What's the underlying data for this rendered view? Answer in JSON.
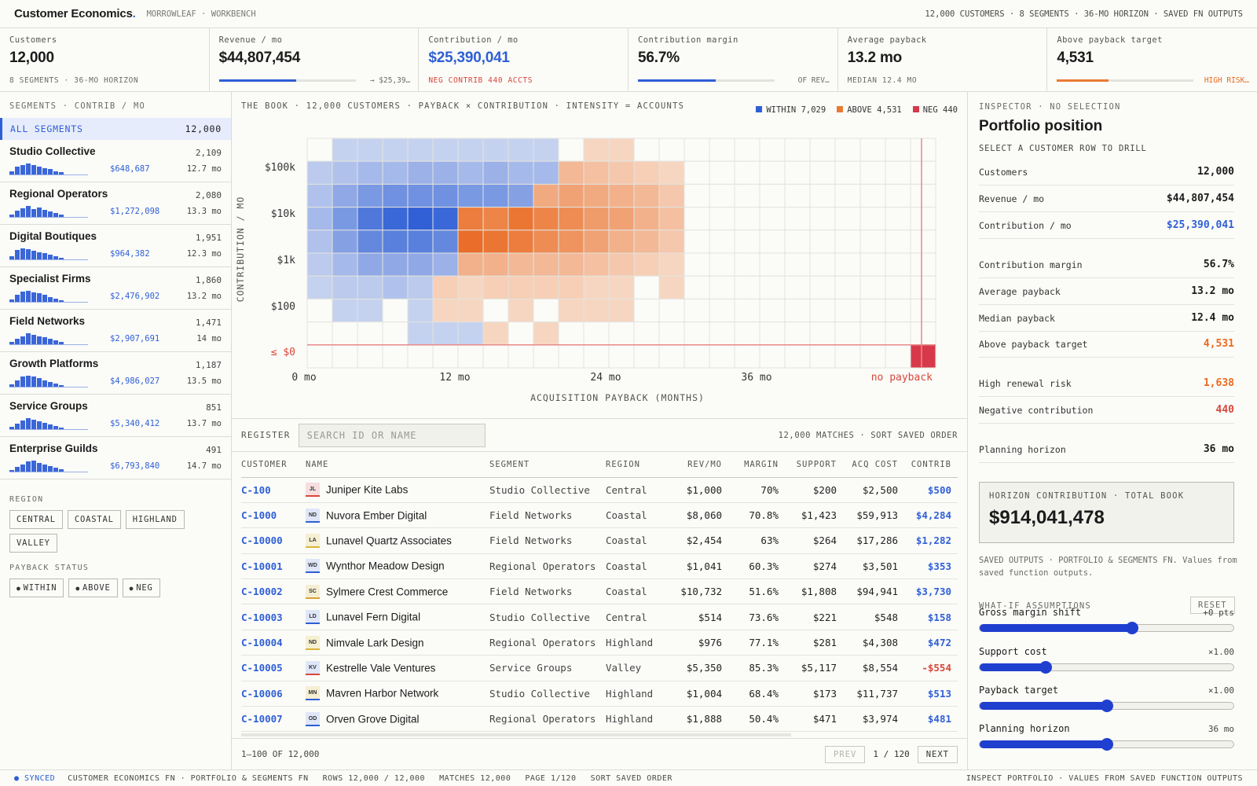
{
  "app": {
    "brand": "Customer Economics",
    "brand_dot": ".",
    "workspace": "MORROWLEAF · WORKBENCH",
    "meta": "12,000 CUSTOMERS · 8 SEGMENTS · 36-MO HORIZON · SAVED FN OUTPUTS"
  },
  "kpis": [
    {
      "label": "Customers",
      "value": "12,000",
      "sub": "8 SEGMENTS · 36-MO HORIZON"
    },
    {
      "label": "Revenue / mo",
      "value": "$44,807,454",
      "bar_fraction": 0.567,
      "note": "→ $25,39…"
    },
    {
      "label": "Contribution / mo",
      "value": "$25,390,041",
      "sub": "NEG CONTRIB 440 ACCTS"
    },
    {
      "label": "Contribution margin",
      "value": "56.7%",
      "bar_fraction": 0.567,
      "note": "OF REV…"
    },
    {
      "label": "Average payback",
      "value": "13.2 mo",
      "sub": "MEDIAN 12.4 MO"
    },
    {
      "label": "Above payback target",
      "value": "4,531",
      "bar_fraction": 0.38,
      "note": "HIGH RISK…"
    }
  ],
  "segments": {
    "header": "SEGMENTS · CONTRIB / MO",
    "all": {
      "label": "ALL SEGMENTS",
      "count": "12,000"
    },
    "items": [
      {
        "name": "Studio Collective",
        "count": "2,109",
        "contrib": "$648,687",
        "payback": "12.7 mo",
        "spark": [
          4,
          10,
          12,
          14,
          12,
          10,
          8,
          7,
          4,
          3
        ]
      },
      {
        "name": "Regional Operators",
        "count": "2,080",
        "contrib": "$1,272,098",
        "payback": "13.3 mo",
        "spark": [
          3,
          8,
          11,
          14,
          10,
          12,
          9,
          7,
          5,
          3
        ]
      },
      {
        "name": "Digital Boutiques",
        "count": "1,951",
        "contrib": "$964,382",
        "payback": "12.3 mo",
        "spark": [
          4,
          12,
          14,
          13,
          11,
          9,
          8,
          6,
          4,
          2
        ]
      },
      {
        "name": "Specialist Firms",
        "count": "1,860",
        "contrib": "$2,476,902",
        "payback": "13.2 mo",
        "spark": [
          3,
          9,
          13,
          14,
          12,
          11,
          9,
          6,
          4,
          2
        ]
      },
      {
        "name": "Field Networks",
        "count": "1,471",
        "contrib": "$2,907,691",
        "payback": "14 mo",
        "spark": [
          3,
          7,
          10,
          14,
          12,
          10,
          9,
          7,
          5,
          3
        ]
      },
      {
        "name": "Growth Platforms",
        "count": "1,187",
        "contrib": "$4,986,027",
        "payback": "13.5 mo",
        "spark": [
          3,
          8,
          13,
          14,
          13,
          11,
          8,
          6,
          4,
          2
        ]
      },
      {
        "name": "Service Groups",
        "count": "851",
        "contrib": "$5,340,412",
        "payback": "13.7 mo",
        "spark": [
          3,
          7,
          11,
          14,
          12,
          10,
          8,
          6,
          4,
          2
        ]
      },
      {
        "name": "Enterprise Guilds",
        "count": "491",
        "contrib": "$6,793,840",
        "payback": "14.7 mo",
        "spark": [
          2,
          6,
          9,
          13,
          14,
          11,
          9,
          7,
          5,
          3
        ]
      }
    ]
  },
  "filters": {
    "region_label": "REGION",
    "regions": [
      "CENTRAL",
      "COASTAL",
      "HIGHLAND",
      "VALLEY"
    ],
    "payback_label": "PAYBACK STATUS",
    "payback": [
      "WITHIN",
      "ABOVE",
      "NEG"
    ],
    "bullet": "●"
  },
  "chart_data": {
    "type": "heatmap",
    "title": "THE BOOK · 12,000 CUSTOMERS · PAYBACK × CONTRIBUTION · INTENSITY = ACCOUNTS",
    "xlabel": "ACQUISITION PAYBACK (MONTHS)",
    "ylabel": "CONTRIBUTION / MO",
    "x_ticks": [
      "0 mo",
      "12 mo",
      "24 mo",
      "36 mo",
      "no payback"
    ],
    "y_ticks": [
      "$100k",
      "$10k",
      "$1k",
      "$100",
      "≤ $0"
    ],
    "legend": [
      {
        "name": "WITHIN",
        "count": "7,029",
        "color": "#2f5fd6"
      },
      {
        "name": "ABOVE",
        "count": "4,531",
        "color": "#ea7a32"
      },
      {
        "name": "NEG",
        "count": "440",
        "color": "#d8394a"
      }
    ],
    "payback_target_col": 10,
    "note": "cells: intensity 0-1 per row (rows top = highest contribution); cols 0..24 = payback buckets of 1.5 mo; col 24 = no payback",
    "rows": [
      [
        0,
        0.25,
        0.25,
        0.25,
        0.25,
        0.25,
        0.25,
        0.25,
        0.25,
        0.25,
        0,
        0.25,
        0.25,
        0,
        0,
        0,
        0,
        0,
        0,
        0,
        0,
        0,
        0,
        0,
        0
      ],
      [
        0.3,
        0.35,
        0.4,
        0.4,
        0.45,
        0.45,
        0.4,
        0.45,
        0.4,
        0.4,
        0.45,
        0.4,
        0.35,
        0.3,
        0.25,
        0,
        0,
        0,
        0,
        0,
        0,
        0,
        0,
        0,
        0
      ],
      [
        0.35,
        0.5,
        0.6,
        0.65,
        0.65,
        0.65,
        0.6,
        0.6,
        0.55,
        0.55,
        0.6,
        0.55,
        0.5,
        0.45,
        0.35,
        0,
        0,
        0,
        0,
        0,
        0,
        0,
        0,
        0,
        0
      ],
      [
        0.4,
        0.6,
        0.8,
        0.9,
        0.95,
        0.9,
        0.85,
        0.8,
        0.9,
        0.8,
        0.75,
        0.65,
        0.6,
        0.5,
        0.4,
        0,
        0,
        0,
        0,
        0,
        0,
        0,
        0,
        0,
        0
      ],
      [
        0.35,
        0.55,
        0.7,
        0.75,
        0.75,
        0.7,
        0.95,
        0.9,
        0.85,
        0.75,
        0.7,
        0.6,
        0.5,
        0.45,
        0.35,
        0,
        0,
        0,
        0,
        0,
        0,
        0,
        0,
        0,
        0
      ],
      [
        0.3,
        0.4,
        0.5,
        0.5,
        0.5,
        0.45,
        0.5,
        0.5,
        0.45,
        0.45,
        0.45,
        0.4,
        0.35,
        0.3,
        0.25,
        0,
        0,
        0,
        0,
        0,
        0,
        0,
        0,
        0,
        0
      ],
      [
        0.25,
        0.3,
        0.3,
        0.35,
        0.3,
        0.3,
        0.25,
        0.3,
        0.3,
        0.3,
        0.3,
        0.25,
        0.25,
        0,
        0.25,
        0,
        0,
        0,
        0,
        0,
        0,
        0,
        0,
        0,
        0
      ],
      [
        0,
        0.25,
        0.25,
        0,
        0.25,
        0.25,
        0.25,
        0,
        0.25,
        0,
        0.25,
        0.25,
        0.25,
        0,
        0,
        0,
        0,
        0,
        0,
        0,
        0,
        0,
        0,
        0,
        0
      ],
      [
        0,
        0,
        0,
        0,
        0.25,
        0.25,
        0.25,
        0.25,
        0,
        0.25,
        0,
        0,
        0,
        0,
        0,
        0,
        0,
        0,
        0,
        0,
        0,
        0,
        0,
        0,
        0
      ],
      [
        0,
        0,
        0,
        0,
        0,
        0,
        0,
        0,
        0,
        0,
        0,
        0,
        0,
        0,
        0,
        0,
        0,
        0,
        0,
        0,
        0,
        0,
        0,
        0,
        1
      ]
    ],
    "split_col": 6,
    "split_rows_orange_from_col": [
      10,
      10,
      9,
      6,
      6,
      6,
      5,
      5,
      7,
      99
    ]
  },
  "register": {
    "label": "REGISTER",
    "search_placeholder": "SEARCH ID OR NAME",
    "meta": "12,000 MATCHES · SORT SAVED ORDER",
    "columns": [
      "CUSTOMER",
      "NAME",
      "SEGMENT",
      "REGION",
      "REV/MO",
      "MARGIN",
      "SUPPORT",
      "ACQ COST",
      "CONTRIB"
    ],
    "rows": [
      {
        "id": "C-100",
        "initials": "JL",
        "avatar_bg": "#f6dede",
        "avatar_line": "#d8473a",
        "name": "Juniper Kite Labs",
        "segment": "Studio Collective",
        "region": "Central",
        "rev": "$1,000",
        "margin": "70%",
        "support": "$200",
        "acq": "$2,500",
        "contrib": "$500",
        "neg": false
      },
      {
        "id": "C-1000",
        "initials": "ND",
        "avatar_bg": "#dfe6f7",
        "avatar_line": "#2f5fd6",
        "name": "Nuvora Ember Digital",
        "segment": "Field Networks",
        "region": "Coastal",
        "rev": "$8,060",
        "margin": "70.8%",
        "support": "$1,423",
        "acq": "$59,913",
        "contrib": "$4,284",
        "neg": false
      },
      {
        "id": "C-10000",
        "initials": "LA",
        "avatar_bg": "#f6f0d2",
        "avatar_line": "#d9b53a",
        "name": "Lunavel Quartz Associates",
        "segment": "Field Networks",
        "region": "Coastal",
        "rev": "$2,454",
        "margin": "63%",
        "support": "$264",
        "acq": "$17,286",
        "contrib": "$1,282",
        "neg": false
      },
      {
        "id": "C-10001",
        "initials": "WD",
        "avatar_bg": "#dfe6f7",
        "avatar_line": "#2f5fd6",
        "name": "Wynthor Meadow Design",
        "segment": "Regional Operators",
        "region": "Coastal",
        "rev": "$1,041",
        "margin": "60.3%",
        "support": "$274",
        "acq": "$3,501",
        "contrib": "$353",
        "neg": false
      },
      {
        "id": "C-10002",
        "initials": "SC",
        "avatar_bg": "#f6eed2",
        "avatar_line": "#d9a23a",
        "name": "Sylmere Crest Commerce",
        "segment": "Field Networks",
        "region": "Coastal",
        "rev": "$10,732",
        "margin": "51.6%",
        "support": "$1,808",
        "acq": "$94,941",
        "contrib": "$3,730",
        "neg": false
      },
      {
        "id": "C-10003",
        "initials": "LD",
        "avatar_bg": "#dfe6f7",
        "avatar_line": "#2f5fd6",
        "name": "Lunavel Fern Digital",
        "segment": "Studio Collective",
        "region": "Central",
        "rev": "$514",
        "margin": "73.6%",
        "support": "$221",
        "acq": "$548",
        "contrib": "$158",
        "neg": false
      },
      {
        "id": "C-10004",
        "initials": "ND",
        "avatar_bg": "#f6f0d2",
        "avatar_line": "#d9b53a",
        "name": "Nimvale Lark Design",
        "segment": "Regional Operators",
        "region": "Highland",
        "rev": "$976",
        "margin": "77.1%",
        "support": "$281",
        "acq": "$4,308",
        "contrib": "$472",
        "neg": false
      },
      {
        "id": "C-10005",
        "initials": "KV",
        "avatar_bg": "#dfe6f7",
        "avatar_line": "#d8473a",
        "name": "Kestrelle Vale Ventures",
        "segment": "Service Groups",
        "region": "Valley",
        "rev": "$5,350",
        "margin": "85.3%",
        "support": "$5,117",
        "acq": "$8,554",
        "contrib": "-$554",
        "neg": true
      },
      {
        "id": "C-10006",
        "initials": "MN",
        "avatar_bg": "#f6eed2",
        "avatar_line": "#2f5fd6",
        "name": "Mavren Harbor Network",
        "segment": "Studio Collective",
        "region": "Highland",
        "rev": "$1,004",
        "margin": "68.4%",
        "support": "$173",
        "acq": "$11,737",
        "contrib": "$513",
        "neg": false
      },
      {
        "id": "C-10007",
        "initials": "OD",
        "avatar_bg": "#dfe6f7",
        "avatar_line": "#2f5fd6",
        "name": "Orven Grove Digital",
        "segment": "Regional Operators",
        "region": "Highland",
        "rev": "$1,888",
        "margin": "50.4%",
        "support": "$471",
        "acq": "$3,974",
        "contrib": "$481",
        "neg": false
      }
    ],
    "range": "1–100 OF 12,000",
    "prev": "PREV",
    "page": "1 / 120",
    "next": "NEXT"
  },
  "inspector": {
    "header": "INSPECTOR · NO SELECTION",
    "title": "Portfolio position",
    "hint": "SELECT A CUSTOMER ROW TO DRILL",
    "rows": [
      {
        "k": "Customers",
        "v": "12,000",
        "tone": ""
      },
      {
        "k": "Revenue / mo",
        "v": "$44,807,454",
        "tone": ""
      },
      {
        "k": "Contribution / mo",
        "v": "$25,390,041",
        "tone": "blue"
      },
      {
        "k": "Contribution margin",
        "v": "56.7%",
        "tone": ""
      },
      {
        "k": "Average payback",
        "v": "13.2 mo",
        "tone": ""
      },
      {
        "k": "Median payback",
        "v": "12.4 mo",
        "tone": ""
      },
      {
        "k": "Above payback target",
        "v": "4,531",
        "tone": "orange"
      },
      {
        "k": "High renewal risk",
        "v": "1,638",
        "tone": "orange"
      },
      {
        "k": "Negative contribution",
        "v": "440",
        "tone": "red"
      },
      {
        "k": "Planning horizon",
        "v": "36 mo",
        "tone": ""
      }
    ],
    "horizon_label": "HORIZON CONTRIBUTION · TOTAL BOOK",
    "horizon_value": "$914,041,478",
    "saved_note": "SAVED OUTPUTS · PORTFOLIO & SEGMENTS FN. Values from saved function outputs.",
    "whatif_label": "WHAT-IF ASSUMPTIONS",
    "reset": "RESET",
    "sliders": [
      {
        "label": "Gross margin shift",
        "value": "+0 pts",
        "fraction": 0.6
      },
      {
        "label": "Support cost",
        "value": "×1.00",
        "fraction": 0.26
      },
      {
        "label": "Payback target",
        "value": "×1.00",
        "fraction": 0.5
      },
      {
        "label": "Planning horizon",
        "value": "36 mo",
        "fraction": 0.5
      }
    ]
  },
  "statusbar": {
    "synced": "● SYNCED",
    "items": [
      "CUSTOMER ECONOMICS FN · PORTFOLIO & SEGMENTS FN",
      "ROWS 12,000 / 12,000",
      "MATCHES 12,000",
      "PAGE 1/120",
      "SORT SAVED ORDER"
    ],
    "right": "INSPECT PORTFOLIO · VALUES FROM SAVED FUNCTION OUTPUTS"
  },
  "colors": {
    "accent": "#2f5fd6",
    "orange": "#ea7a32",
    "red": "#d8394a"
  }
}
